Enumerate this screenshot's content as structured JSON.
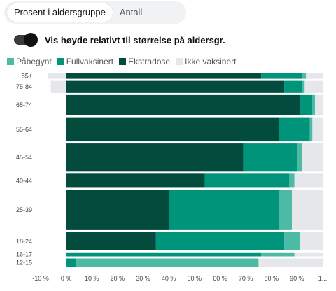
{
  "tabs": [
    {
      "label": "Prosent i aldersgruppe",
      "active": true
    },
    {
      "label": "Antall",
      "active": false
    }
  ],
  "toggle": {
    "label": "Vis høyde relativt til størrelse på aldersgr.",
    "on": true
  },
  "colors": {
    "pabegynt": "#4dbaa6",
    "fullvaksinert": "#00947a",
    "ekstradose": "#034b3d",
    "ikke": "#e6e7ea",
    "negative": "#e6e7ea"
  },
  "chart_data": {
    "type": "bar",
    "orientation": "horizontal",
    "stacked": true,
    "legend": [
      {
        "name": "Påbegynt",
        "key": "pabegynt"
      },
      {
        "name": "Fullvaksinert",
        "key": "fullvaksinert"
      },
      {
        "name": "Ekstradose",
        "key": "ekstradose"
      },
      {
        "name": "Ikke vaksinert",
        "key": "ikke"
      }
    ],
    "xlim": [
      -10,
      100
    ],
    "xticks": [
      "-10 %",
      "0 %",
      "10 %",
      "20 %",
      "30 %",
      "40 %",
      "50 %",
      "60 %",
      "70 %",
      "80 %",
      "90 %",
      "1..."
    ],
    "rows": [
      {
        "label": "85+",
        "weight": 1.5,
        "negative": 7,
        "ekstradose": 76,
        "fullvaksinert": 16,
        "pabegynt": 1.5,
        "ikke": 6.5
      },
      {
        "label": "75-84",
        "weight": 3,
        "negative": 6,
        "ekstradose": 85,
        "fullvaksinert": 7,
        "pabegynt": 1,
        "ikke": 7
      },
      {
        "label": "65-74",
        "weight": 5,
        "negative": 0,
        "ekstradose": 91,
        "fullvaksinert": 5,
        "pabegynt": 1,
        "ikke": 3
      },
      {
        "label": "55-64",
        "weight": 6,
        "negative": 0,
        "ekstradose": 83,
        "fullvaksinert": 12,
        "pabegynt": 1,
        "ikke": 4
      },
      {
        "label": "45-54",
        "weight": 7,
        "negative": 0,
        "ekstradose": 69,
        "fullvaksinert": 21,
        "pabegynt": 2,
        "ikke": 8
      },
      {
        "label": "40-44",
        "weight": 3.5,
        "negative": 0,
        "ekstradose": 54,
        "fullvaksinert": 33,
        "pabegynt": 2,
        "ikke": 11
      },
      {
        "label": "25-39",
        "weight": 10,
        "negative": 0,
        "ekstradose": 40,
        "fullvaksinert": 43,
        "pabegynt": 5,
        "ikke": 12
      },
      {
        "label": "18-24",
        "weight": 4.5,
        "negative": 0,
        "ekstradose": 35,
        "fullvaksinert": 50,
        "pabegynt": 6,
        "ikke": 9
      },
      {
        "label": "16-17",
        "weight": 1,
        "negative": 0,
        "ekstradose": 0,
        "fullvaksinert": 76,
        "pabegynt": 13,
        "ikke": 11
      },
      {
        "label": "12-15",
        "weight": 2,
        "negative": 0,
        "ekstradose": 0,
        "fullvaksinert": 4,
        "pabegynt": 71,
        "ikke": 25
      }
    ]
  }
}
